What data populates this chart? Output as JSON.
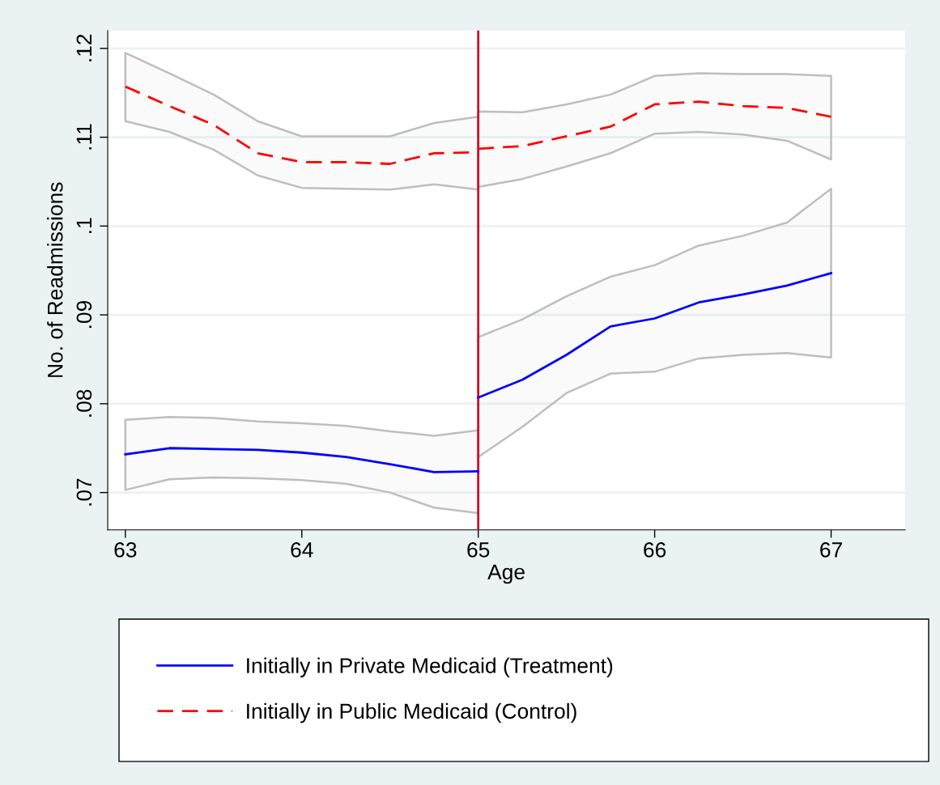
{
  "chart_data": {
    "type": "line",
    "xlabel": "Age",
    "ylabel": "No. of Readmissions",
    "xlim": [
      62.9,
      67.42
    ],
    "ylim": [
      0.0658,
      0.122
    ],
    "xticks": [
      63,
      64,
      65,
      66,
      67
    ],
    "yticks": [
      {
        "value": 0.07,
        "label": ".07"
      },
      {
        "value": 0.08,
        "label": ".08"
      },
      {
        "value": 0.09,
        "label": ".09"
      },
      {
        "value": 0.1,
        "label": ".1"
      },
      {
        "value": 0.11,
        "label": ".11"
      },
      {
        "value": 0.12,
        "label": ".12"
      }
    ],
    "grid": "y",
    "legend": "bottom",
    "ref_lines": [
      {
        "axis": "x",
        "value": 65,
        "color": "#c8102e",
        "line_style": "solid"
      }
    ],
    "series": [
      {
        "name": "Initially in Private Medicaid (Treatment)",
        "color": "#0000ff",
        "line_style": "solid",
        "x": [
          63,
          63.25,
          63.5,
          63.75,
          64,
          64.25,
          64.5,
          64.75,
          65
        ],
        "values": [
          0.0743,
          0.075,
          0.0749,
          0.0748,
          0.0745,
          0.074,
          0.0732,
          0.0723,
          0.0724
        ],
        "lower": [
          0.0703,
          0.0715,
          0.0717,
          0.0716,
          0.0714,
          0.071,
          0.07,
          0.0683,
          0.0677
        ],
        "upper": [
          0.0782,
          0.0785,
          0.0784,
          0.078,
          0.0778,
          0.0775,
          0.0769,
          0.0764,
          0.077
        ]
      },
      {
        "color": "#0000ff",
        "line_style": "solid",
        "x": [
          65,
          65.25,
          65.5,
          65.75,
          66,
          66.25,
          66.5,
          66.75,
          67
        ],
        "values": [
          0.0807,
          0.0827,
          0.0855,
          0.0887,
          0.0896,
          0.0914,
          0.0923,
          0.0933,
          0.0947
        ],
        "lower": [
          0.074,
          0.0774,
          0.0812,
          0.0834,
          0.0836,
          0.0851,
          0.0855,
          0.0857,
          0.0852
        ],
        "upper": [
          0.0875,
          0.0895,
          0.0921,
          0.0943,
          0.0956,
          0.0978,
          0.0989,
          0.1004,
          0.1042
        ]
      },
      {
        "name": "Initially in Public Medicaid (Control)",
        "color": "#ff0000",
        "line_style": "dashed",
        "x": [
          63,
          63.25,
          63.5,
          63.75,
          64,
          64.25,
          64.5,
          64.75,
          65
        ],
        "values": [
          0.1157,
          0.1135,
          0.1114,
          0.1082,
          0.1072,
          0.1072,
          0.107,
          0.1082,
          0.1083
        ],
        "lower": [
          0.1118,
          0.1106,
          0.1086,
          0.1057,
          0.1043,
          0.1042,
          0.1041,
          0.1047,
          0.1041
        ],
        "upper": [
          0.1195,
          0.1172,
          0.1148,
          0.1118,
          0.1101,
          0.1101,
          0.1101,
          0.1116,
          0.1123
        ]
      },
      {
        "color": "#ff0000",
        "line_style": "dashed",
        "x": [
          65,
          65.25,
          65.5,
          65.75,
          66,
          66.25,
          66.5,
          66.75,
          67
        ],
        "values": [
          0.1087,
          0.109,
          0.1101,
          0.1112,
          0.1137,
          0.114,
          0.1135,
          0.1133,
          0.1123
        ],
        "lower": [
          0.1044,
          0.1053,
          0.1067,
          0.1082,
          0.1104,
          0.1106,
          0.1103,
          0.1096,
          0.1075
        ],
        "upper": [
          0.1129,
          0.1128,
          0.1137,
          0.1148,
          0.1169,
          0.1172,
          0.1171,
          0.1171,
          0.1169
        ]
      }
    ]
  }
}
